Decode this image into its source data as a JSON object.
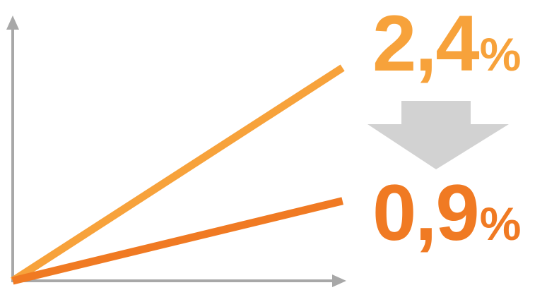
{
  "colors": {
    "axis": "#a8a8a8",
    "arrow": "#d2d2d2",
    "series_high": "#f7a23b",
    "series_low": "#f07a23",
    "background": "#ffffff"
  },
  "values_text": {
    "top_number": "2,4",
    "top_unit": "%",
    "bottom_number": "0,9",
    "bottom_unit": "%"
  },
  "icons": {
    "transition_arrow": "down-arrow-icon"
  },
  "chart_data": {
    "type": "line",
    "title": "",
    "xlabel": "",
    "ylabel": "",
    "grid": false,
    "x": [
      0,
      1
    ],
    "xlim": [
      0,
      1.2
    ],
    "ylim": [
      0,
      3.1
    ],
    "series": [
      {
        "values": [
          0,
          2.4
        ],
        "color": "#f7a23b"
      },
      {
        "values": [
          0,
          0.9
        ],
        "color": "#f07a23"
      }
    ]
  }
}
